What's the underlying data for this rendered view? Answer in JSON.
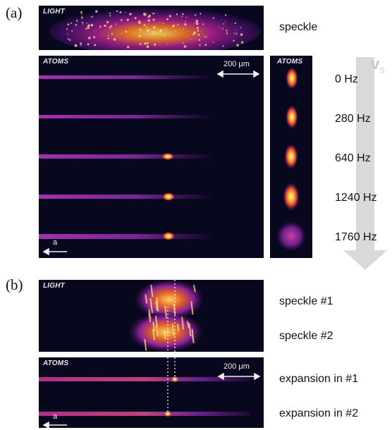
{
  "panel_a": {
    "letter": "(a)",
    "light_tag": "LIGHT",
    "speckle_label": "speckle",
    "atoms_tag": "ATOMS",
    "scale_bar": "200 μm",
    "accel_label": "a",
    "zoom_tag": "ATOMS",
    "velocity_label": "v",
    "velocity_sub": "S",
    "frequencies": [
      "0 Hz",
      "280 Hz",
      "640 Hz",
      "1240 Hz",
      "1760 Hz"
    ]
  },
  "panel_b": {
    "letter": "(b)",
    "light_tag": "LIGHT",
    "speckle1_label": "speckle #1",
    "speckle2_label": "speckle #2",
    "atoms_tag": "ATOMS",
    "scale_bar": "200 μm",
    "accel_label": "a",
    "expansion1_label": "expansion in #1",
    "expansion2_label": "expansion in #2"
  },
  "colors": {
    "background": "#07071e",
    "beam": "#8a2aa0",
    "hot": "#ffd23c",
    "arrow": "#d9d9d9"
  }
}
